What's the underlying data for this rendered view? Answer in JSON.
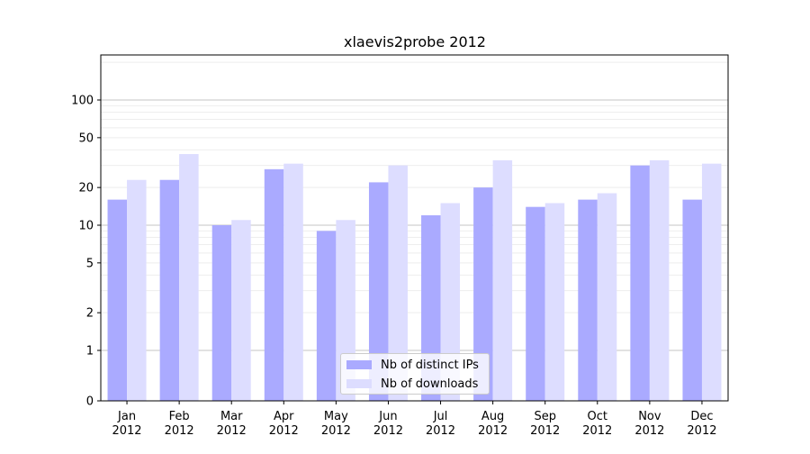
{
  "chart_data": {
    "type": "bar",
    "title": "xlaevis2probe 2012",
    "xlabel": "",
    "ylabel": "",
    "yscale": "symlog",
    "ylim": [
      0,
      110
    ],
    "yticks": [
      0,
      1,
      2,
      5,
      10,
      20,
      50,
      100
    ],
    "ytick_labels": [
      "0",
      "1",
      "2",
      "5",
      "10",
      "20",
      "50",
      "100"
    ],
    "grid": "y",
    "legend_position": "bottom-center",
    "categories": [
      "Jan\n2012",
      "Feb\n2012",
      "Mar\n2012",
      "Apr\n2012",
      "May\n2012",
      "Jun\n2012",
      "Jul\n2012",
      "Aug\n2012",
      "Sep\n2012",
      "Oct\n2012",
      "Nov\n2012",
      "Dec\n2012"
    ],
    "category_lines": [
      [
        "Jan",
        "2012"
      ],
      [
        "Feb",
        "2012"
      ],
      [
        "Mar",
        "2012"
      ],
      [
        "Apr",
        "2012"
      ],
      [
        "May",
        "2012"
      ],
      [
        "Jun",
        "2012"
      ],
      [
        "Jul",
        "2012"
      ],
      [
        "Aug",
        "2012"
      ],
      [
        "Sep",
        "2012"
      ],
      [
        "Oct",
        "2012"
      ],
      [
        "Nov",
        "2012"
      ],
      [
        "Dec",
        "2012"
      ]
    ],
    "series": [
      {
        "name": "Nb of distinct IPs",
        "color": "#aaaaff",
        "values": [
          16,
          23,
          10,
          28,
          9,
          22,
          12,
          20,
          14,
          16,
          30,
          16
        ]
      },
      {
        "name": "Nb of downloads",
        "color": "#ddddff",
        "values": [
          23,
          37,
          11,
          31,
          11,
          30,
          15,
          33,
          15,
          18,
          33,
          31
        ]
      }
    ]
  }
}
